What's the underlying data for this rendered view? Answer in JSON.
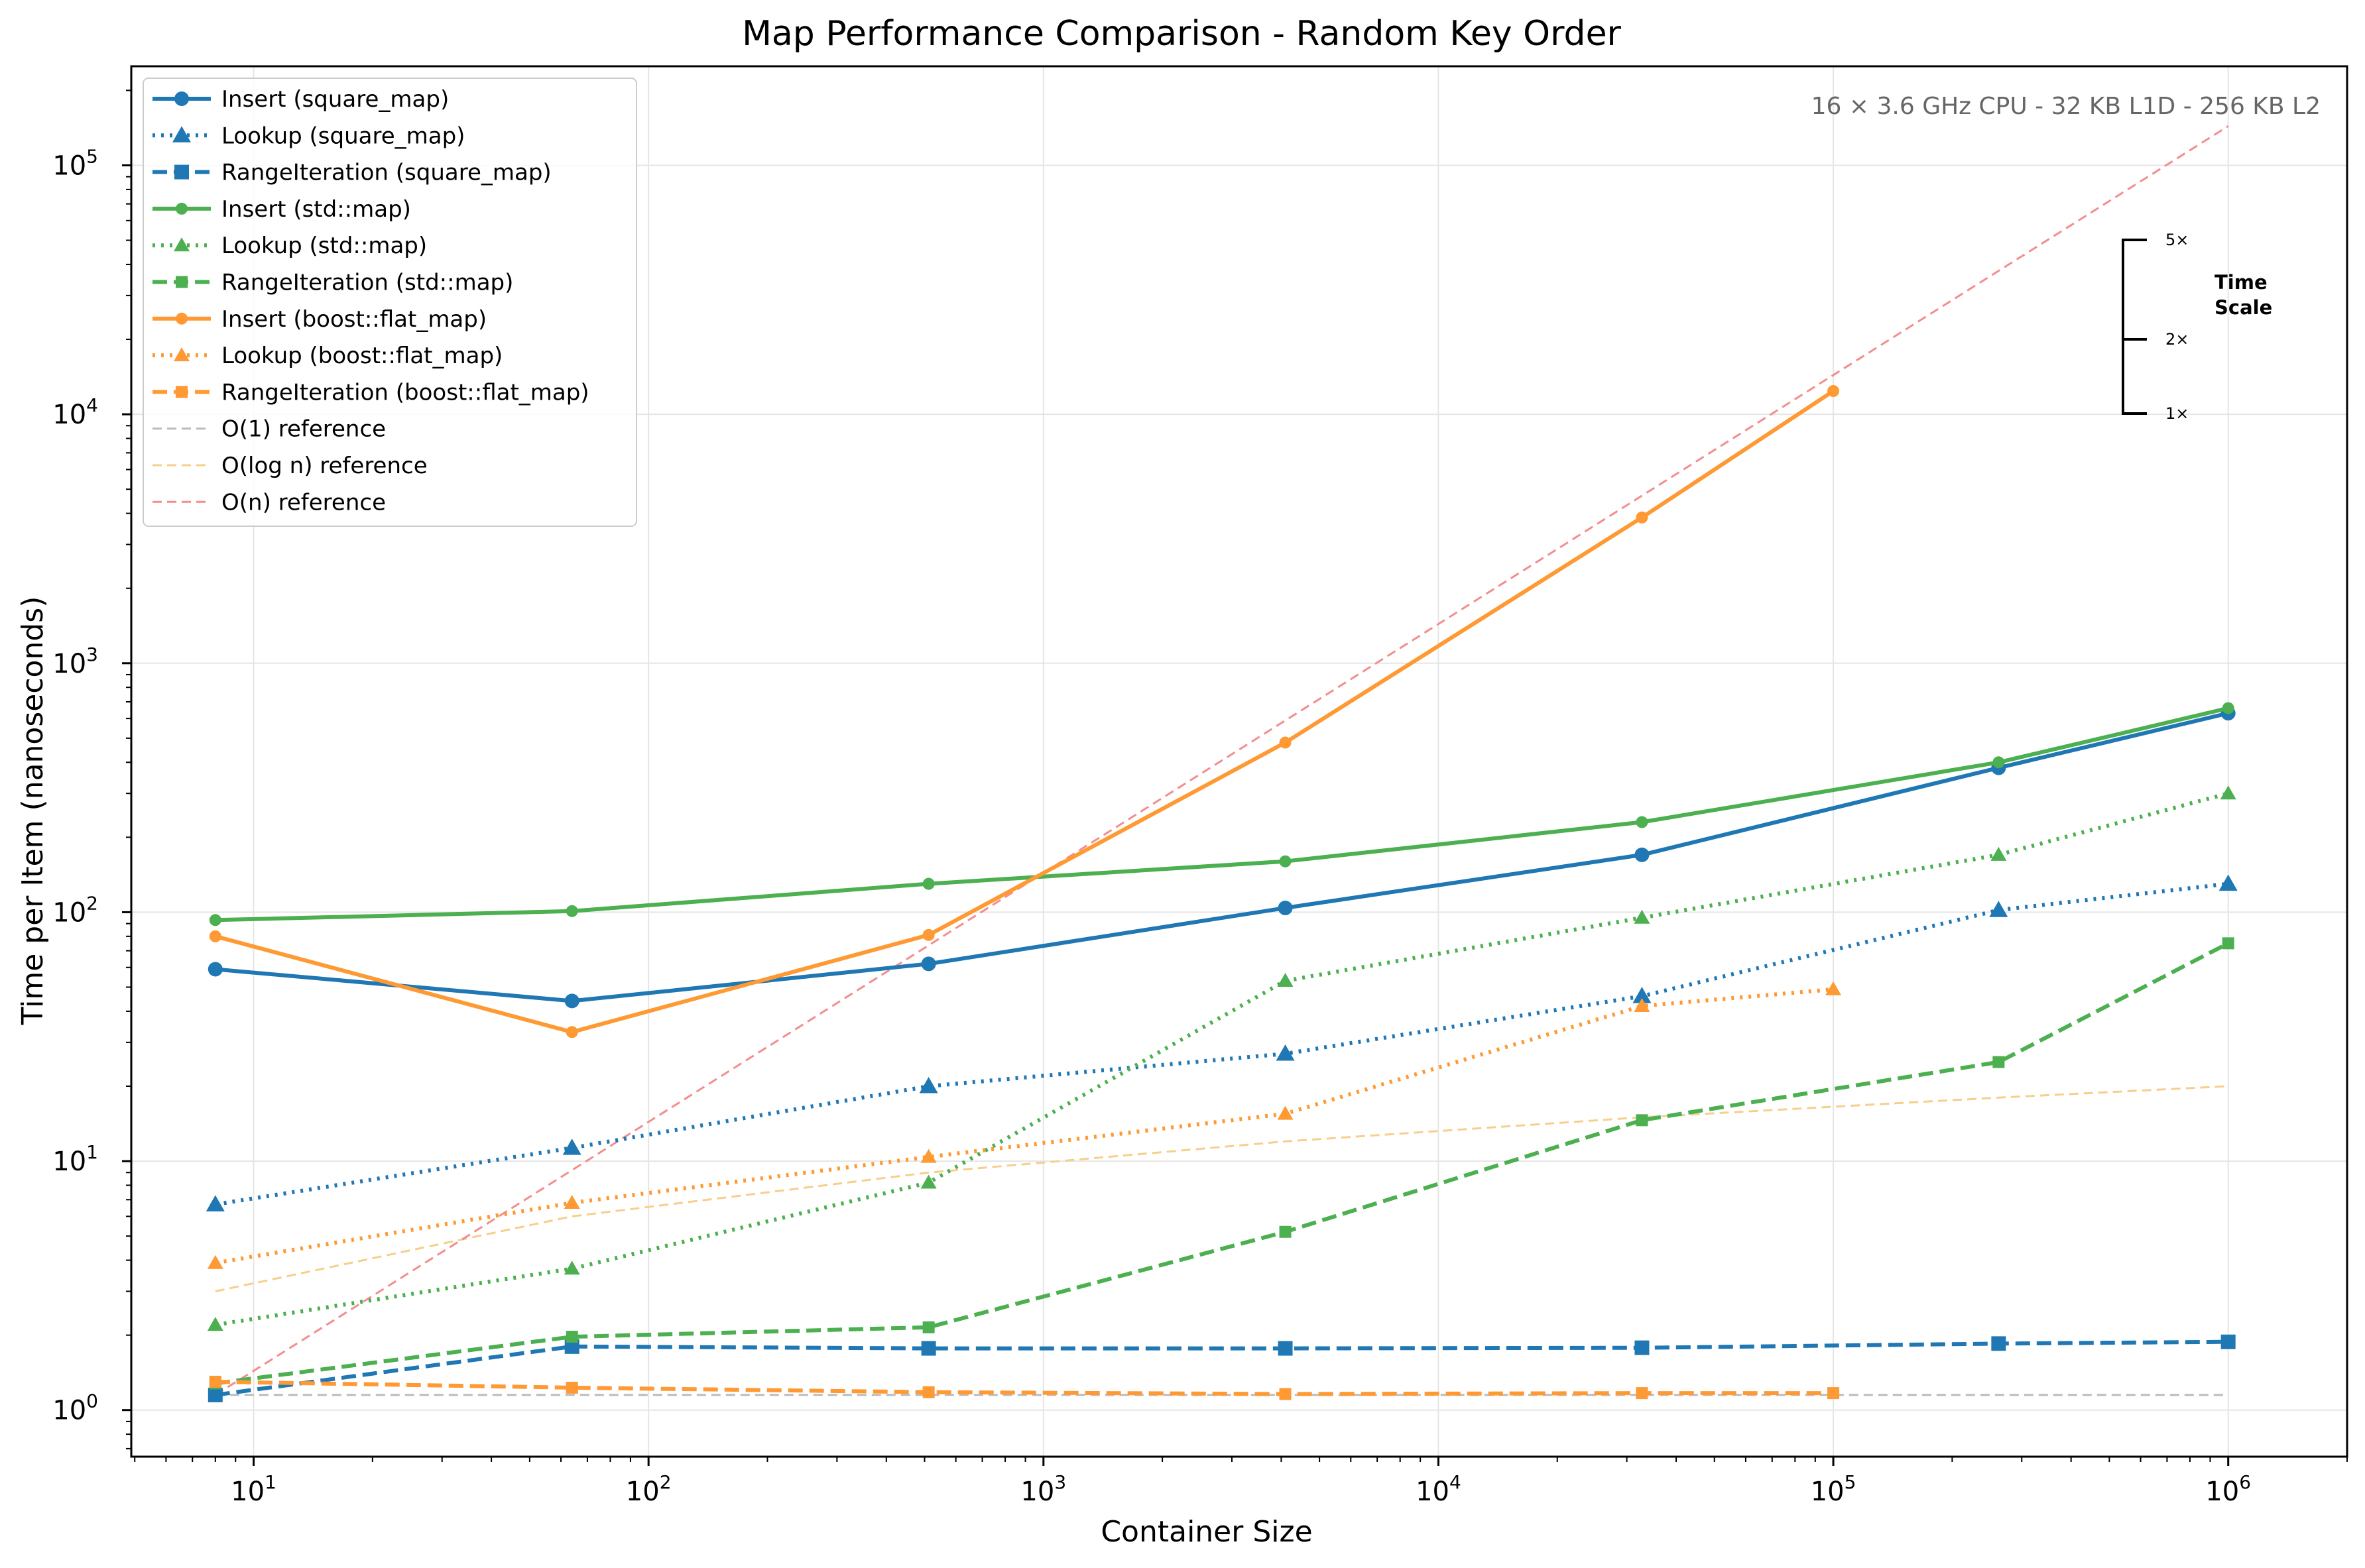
{
  "chart_data": {
    "type": "line",
    "title": "Map Performance Comparison - Random Key Order",
    "xlabel": "Container Size",
    "ylabel": "Time per Item (nanoseconds)",
    "xscale": "log",
    "yscale": "log",
    "xlim": [
      4.9,
      2000000
    ],
    "ylim": [
      0.65,
      250000
    ],
    "grid": true,
    "legend_position": "top-left",
    "x_ticks": [
      {
        "value": 10,
        "base": "10",
        "exp": "1"
      },
      {
        "value": 100,
        "base": "10",
        "exp": "2"
      },
      {
        "value": 1000,
        "base": "10",
        "exp": "3"
      },
      {
        "value": 10000,
        "base": "10",
        "exp": "4"
      },
      {
        "value": 100000,
        "base": "10",
        "exp": "5"
      },
      {
        "value": 1000000,
        "base": "10",
        "exp": "6"
      }
    ],
    "y_ticks": [
      {
        "value": 1,
        "base": "10",
        "exp": "0"
      },
      {
        "value": 10,
        "base": "10",
        "exp": "1"
      },
      {
        "value": 100,
        "base": "10",
        "exp": "2"
      },
      {
        "value": 1000,
        "base": "10",
        "exp": "3"
      },
      {
        "value": 10000,
        "base": "10",
        "exp": "4"
      },
      {
        "value": 100000,
        "base": "10",
        "exp": "5"
      }
    ],
    "annotation": "16 × 3.6 GHz CPU  -  32 KB L1D  -  256 KB L2",
    "scale_bar": {
      "title_line1": "Time",
      "title_line2": "Scale",
      "labels": [
        "5×",
        "2×",
        "1×"
      ]
    },
    "series": [
      {
        "name": "Insert (square_map)",
        "color": "#1f77b4",
        "style": "solid",
        "marker": "circle",
        "x": [
          8,
          64,
          512,
          4096,
          32768,
          262144,
          1000000
        ],
        "y": [
          59,
          44,
          62,
          104,
          170,
          380,
          630
        ]
      },
      {
        "name": "Lookup (square_map)",
        "color": "#1f77b4",
        "style": "dotted",
        "marker": "triangle",
        "x": [
          8,
          64,
          512,
          4096,
          32768,
          262144,
          1000000
        ],
        "y": [
          6.7,
          11.3,
          20,
          27,
          46,
          102,
          130
        ]
      },
      {
        "name": "RangeIteration (square_map)",
        "color": "#1f77b4",
        "style": "dashed",
        "marker": "square",
        "x": [
          8,
          64,
          512,
          4096,
          32768,
          262144,
          1000000
        ],
        "y": [
          1.15,
          1.8,
          1.77,
          1.77,
          1.78,
          1.85,
          1.88
        ]
      },
      {
        "name": "Insert (std::map)",
        "color": "#4caf50",
        "style": "solid",
        "marker": "circle-small",
        "x": [
          8,
          64,
          512,
          4096,
          32768,
          262144,
          1000000
        ],
        "y": [
          93,
          101,
          130,
          160,
          230,
          400,
          660
        ]
      },
      {
        "name": "Lookup (std::map)",
        "color": "#4caf50",
        "style": "dotted",
        "marker": "triangle-small",
        "x": [
          8,
          64,
          512,
          4096,
          32768,
          262144,
          1000000
        ],
        "y": [
          2.2,
          3.7,
          8.2,
          53,
          95,
          170,
          300
        ]
      },
      {
        "name": "RangeIteration (std::map)",
        "color": "#4caf50",
        "style": "dashed",
        "marker": "square-small",
        "x": [
          8,
          64,
          512,
          4096,
          32768,
          262144,
          1000000
        ],
        "y": [
          1.28,
          1.97,
          2.15,
          5.2,
          14.6,
          25,
          75
        ]
      },
      {
        "name": "Insert (boost::flat_map)",
        "color": "#ff9933",
        "style": "solid",
        "marker": "circle-small",
        "x": [
          8,
          64,
          512,
          4096,
          32768,
          100000
        ],
        "y": [
          80,
          33,
          81,
          480,
          3850,
          12400
        ]
      },
      {
        "name": "Lookup (boost::flat_map)",
        "color": "#ff9933",
        "style": "dotted",
        "marker": "triangle-small",
        "x": [
          8,
          64,
          512,
          4096,
          32768,
          100000
        ],
        "y": [
          3.9,
          6.8,
          10.4,
          15.5,
          42,
          49
        ]
      },
      {
        "name": "RangeIteration (boost::flat_map)",
        "color": "#ff9933",
        "style": "dashed",
        "marker": "square-small",
        "x": [
          8,
          64,
          512,
          4096,
          32768,
          100000
        ],
        "y": [
          1.3,
          1.23,
          1.18,
          1.16,
          1.17,
          1.17
        ]
      },
      {
        "name": "O(1) reference",
        "color": "#bbbbbb",
        "style": "thin-dashed",
        "marker": "none",
        "x": [
          8,
          1000000
        ],
        "y": [
          1.15,
          1.15
        ]
      },
      {
        "name": "O(log n) reference",
        "color": "#f6cf8a",
        "style": "thin-dashed",
        "marker": "none",
        "x": [
          8,
          64,
          512,
          4096,
          32768,
          262144,
          1000000
        ],
        "y": [
          3.0,
          6.0,
          9.0,
          12.0,
          15.0,
          18.0,
          20.0
        ]
      },
      {
        "name": "O(n) reference",
        "color": "#f28e8e",
        "style": "thin-dashed",
        "marker": "none",
        "x": [
          8,
          1000000
        ],
        "y": [
          1.15,
          143750
        ]
      }
    ]
  }
}
